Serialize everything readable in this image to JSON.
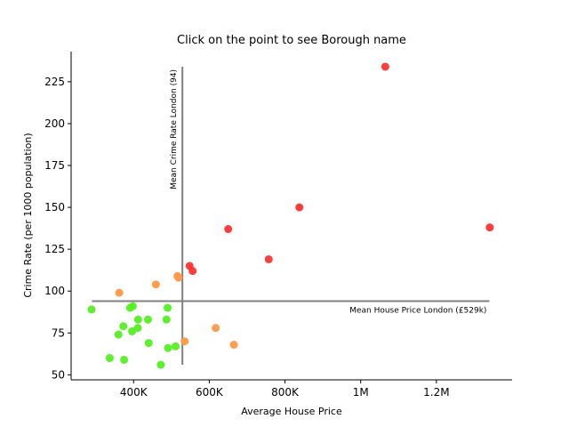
{
  "chart_data": {
    "type": "scatter",
    "title": "Click on the point to see Borough name",
    "xlabel": "Average House Price",
    "ylabel": "Crime Rate (per 1000 population)",
    "xlim": [
      235000,
      1400000
    ],
    "ylim": [
      47,
      243
    ],
    "x_ticks": [
      {
        "value": 400000,
        "label": "400K"
      },
      {
        "value": 600000,
        "label": "600K"
      },
      {
        "value": 800000,
        "label": "800K"
      },
      {
        "value": 1000000,
        "label": "1M"
      },
      {
        "value": 1200000,
        "label": "1.2M"
      }
    ],
    "y_ticks": [
      {
        "value": 50,
        "label": "50"
      },
      {
        "value": 75,
        "label": "75"
      },
      {
        "value": 100,
        "label": "100"
      },
      {
        "value": 125,
        "label": "125"
      },
      {
        "value": 150,
        "label": "150"
      },
      {
        "value": 175,
        "label": "175"
      },
      {
        "value": 200,
        "label": "200"
      },
      {
        "value": 225,
        "label": "225"
      }
    ],
    "colors": {
      "high": "#ff3333",
      "mid": "#ff9944",
      "low": "#55ee22",
      "line": "#808080"
    },
    "reference_lines": {
      "vertical": {
        "x": 529000,
        "y_range": [
          56,
          234
        ],
        "label": "Mean Crime Rate London (94)"
      },
      "horizontal": {
        "y": 94,
        "x_range": [
          290000,
          1340000
        ],
        "label": "Mean House Price London (£529k)"
      }
    },
    "points": [
      {
        "x": 1065000,
        "y": 234,
        "group": "high"
      },
      {
        "x": 838000,
        "y": 150,
        "group": "high"
      },
      {
        "x": 1341000,
        "y": 138,
        "group": "high"
      },
      {
        "x": 650000,
        "y": 137,
        "group": "high"
      },
      {
        "x": 757000,
        "y": 119,
        "group": "high"
      },
      {
        "x": 548000,
        "y": 115,
        "group": "high"
      },
      {
        "x": 556000,
        "y": 112,
        "group": "high"
      },
      {
        "x": 516000,
        "y": 109,
        "group": "mid"
      },
      {
        "x": 519000,
        "y": 108,
        "group": "mid"
      },
      {
        "x": 459000,
        "y": 104,
        "group": "mid"
      },
      {
        "x": 362000,
        "y": 99,
        "group": "mid"
      },
      {
        "x": 617000,
        "y": 78,
        "group": "mid"
      },
      {
        "x": 665000,
        "y": 68,
        "group": "mid"
      },
      {
        "x": 535000,
        "y": 70,
        "group": "mid"
      },
      {
        "x": 289000,
        "y": 89,
        "group": "low"
      },
      {
        "x": 391000,
        "y": 90,
        "group": "low"
      },
      {
        "x": 398000,
        "y": 91,
        "group": "low"
      },
      {
        "x": 490000,
        "y": 90,
        "group": "low"
      },
      {
        "x": 412000,
        "y": 83,
        "group": "low"
      },
      {
        "x": 438000,
        "y": 83,
        "group": "low"
      },
      {
        "x": 487000,
        "y": 83,
        "group": "low"
      },
      {
        "x": 373000,
        "y": 79,
        "group": "low"
      },
      {
        "x": 411000,
        "y": 78,
        "group": "low"
      },
      {
        "x": 396000,
        "y": 76,
        "group": "low"
      },
      {
        "x": 360000,
        "y": 74,
        "group": "low"
      },
      {
        "x": 440000,
        "y": 69,
        "group": "low"
      },
      {
        "x": 511000,
        "y": 67,
        "group": "low"
      },
      {
        "x": 491000,
        "y": 66,
        "group": "low"
      },
      {
        "x": 337000,
        "y": 60,
        "group": "low"
      },
      {
        "x": 375000,
        "y": 59,
        "group": "low"
      },
      {
        "x": 472000,
        "y": 56,
        "group": "low"
      }
    ]
  }
}
